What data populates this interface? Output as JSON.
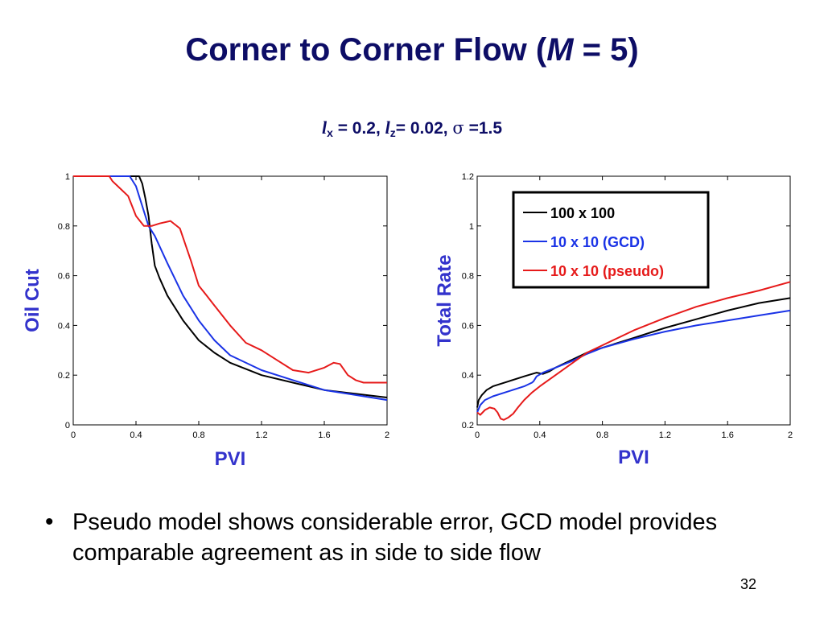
{
  "slide": {
    "title_prefix": "Corner to Corner Flow  (",
    "title_var": "M",
    "title_suffix": " = 5)",
    "params": {
      "lx_var": "l",
      "lx_sub": "x",
      "lx_value": " = 0.2, ",
      "lz_var": "l",
      "lz_sub": "z",
      "lz_value": "= 0.02, ",
      "sigma_symbol": "σ",
      "sigma_value": " =1.5"
    },
    "bullet_symbol": "•",
    "bullet_text": "Pseudo model shows considerable error, GCD model provides comparable agreement as in side to side flow",
    "page_number": "32"
  },
  "colors": {
    "title": "#0d0d66",
    "axis_label": "#3333cc",
    "black_series": "#000000",
    "blue_series": "#1a33e6",
    "red_series": "#e61a1a"
  },
  "chart_data": [
    {
      "type": "line",
      "title": "",
      "xlabel": "PVI",
      "ylabel": "Oil Cut",
      "xlim": [
        0,
        2
      ],
      "ylim": [
        0,
        1
      ],
      "xticks": [
        "0",
        "0.4",
        "0.8",
        "1.2",
        "1.6",
        "2"
      ],
      "yticks": [
        "0",
        "0.2",
        "0.4",
        "0.6",
        "0.8",
        "1"
      ],
      "legend": null,
      "series": [
        {
          "color": "#000000",
          "x": [
            0,
            0.3,
            0.42,
            0.44,
            0.46,
            0.48,
            0.5,
            0.52,
            0.55,
            0.6,
            0.7,
            0.8,
            0.9,
            1.0,
            1.2,
            1.4,
            1.6,
            1.8,
            2.0
          ],
          "y": [
            1,
            1,
            1,
            0.97,
            0.91,
            0.84,
            0.73,
            0.64,
            0.59,
            0.52,
            0.42,
            0.34,
            0.29,
            0.25,
            0.2,
            0.17,
            0.14,
            0.125,
            0.11
          ]
        },
        {
          "color": "#1a33e6",
          "x": [
            0,
            0.36,
            0.4,
            0.44,
            0.48,
            0.52,
            0.6,
            0.7,
            0.8,
            0.9,
            1.0,
            1.2,
            1.4,
            1.6,
            1.8,
            2.0
          ],
          "y": [
            1,
            1,
            0.96,
            0.88,
            0.8,
            0.76,
            0.65,
            0.52,
            0.42,
            0.34,
            0.28,
            0.22,
            0.18,
            0.14,
            0.12,
            0.1
          ]
        },
        {
          "color": "#e61a1a",
          "x": [
            0,
            0.23,
            0.25,
            0.3,
            0.35,
            0.4,
            0.45,
            0.5,
            0.55,
            0.62,
            0.68,
            0.75,
            0.8,
            0.85,
            0.9,
            1.0,
            1.1,
            1.2,
            1.3,
            1.4,
            1.5,
            1.6,
            1.66,
            1.7,
            1.75,
            1.8,
            1.85,
            2.0
          ],
          "y": [
            1,
            1,
            0.98,
            0.95,
            0.92,
            0.84,
            0.8,
            0.8,
            0.81,
            0.82,
            0.79,
            0.66,
            0.56,
            0.52,
            0.48,
            0.4,
            0.33,
            0.3,
            0.26,
            0.22,
            0.21,
            0.23,
            0.25,
            0.245,
            0.2,
            0.18,
            0.17,
            0.17
          ]
        }
      ]
    },
    {
      "type": "line",
      "title": "",
      "xlabel": "PVI",
      "ylabel": "Total Rate",
      "xlim": [
        0,
        2
      ],
      "ylim": [
        0.2,
        1.2
      ],
      "xticks": [
        "0",
        "0.4",
        "0.8",
        "1.2",
        "1.6",
        "2"
      ],
      "yticks": [
        "0.2",
        "0.4",
        "0.6",
        "0.8",
        "1",
        "1.2"
      ],
      "legend": "top-right",
      "series": [
        {
          "name": "100 x 100",
          "color": "#000000",
          "x": [
            0,
            0.01,
            0.03,
            0.06,
            0.1,
            0.2,
            0.3,
            0.38,
            0.42,
            0.46,
            0.5,
            0.6,
            0.7,
            0.8,
            1.0,
            1.2,
            1.4,
            1.6,
            1.8,
            2.0
          ],
          "y": [
            0.27,
            0.3,
            0.32,
            0.34,
            0.355,
            0.375,
            0.395,
            0.41,
            0.405,
            0.415,
            0.43,
            0.46,
            0.49,
            0.51,
            0.55,
            0.59,
            0.625,
            0.66,
            0.69,
            0.71
          ]
        },
        {
          "name": "10 x 10 (GCD)",
          "color": "#1a33e6",
          "x": [
            0,
            0.02,
            0.05,
            0.1,
            0.2,
            0.3,
            0.35,
            0.36,
            0.38,
            0.42,
            0.5,
            0.6,
            0.7,
            0.8,
            1.0,
            1.2,
            1.4,
            1.6,
            1.8,
            2.0
          ],
          "y": [
            0.25,
            0.28,
            0.3,
            0.315,
            0.335,
            0.355,
            0.37,
            0.375,
            0.395,
            0.41,
            0.43,
            0.455,
            0.485,
            0.51,
            0.545,
            0.575,
            0.6,
            0.62,
            0.64,
            0.66
          ]
        },
        {
          "name": "10 x 10 (pseudo)",
          "color": "#e61a1a",
          "x": [
            0,
            0.02,
            0.05,
            0.08,
            0.11,
            0.13,
            0.15,
            0.17,
            0.2,
            0.23,
            0.26,
            0.3,
            0.35,
            0.4,
            0.5,
            0.6,
            0.7,
            0.8,
            1.0,
            1.2,
            1.4,
            1.6,
            1.8,
            2.0
          ],
          "y": [
            0.25,
            0.24,
            0.26,
            0.27,
            0.265,
            0.25,
            0.225,
            0.22,
            0.23,
            0.245,
            0.27,
            0.3,
            0.33,
            0.355,
            0.4,
            0.445,
            0.49,
            0.52,
            0.58,
            0.63,
            0.675,
            0.71,
            0.74,
            0.775
          ]
        }
      ]
    }
  ]
}
